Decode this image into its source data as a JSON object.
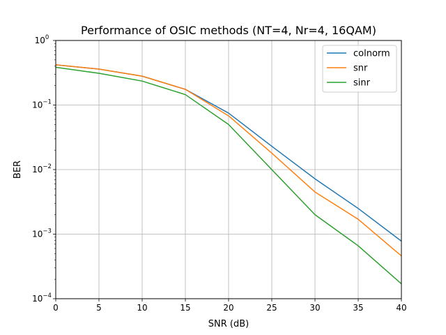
{
  "chart_data": {
    "type": "line",
    "title": "Performance of OSIC methods (NT=4, Nr=4, 16QAM)",
    "xlabel": "SNR (dB)",
    "ylabel": "BER",
    "x": [
      0,
      5,
      10,
      15,
      20,
      25,
      30,
      35,
      40
    ],
    "xlim": [
      0,
      40
    ],
    "ylim": [
      0.0001,
      1
    ],
    "yscale": "log",
    "grid": true,
    "legend_position": "top-right",
    "x_ticks": [
      "0",
      "5",
      "10",
      "15",
      "20",
      "25",
      "30",
      "35",
      "40"
    ],
    "y_ticks": [
      {
        "base": "10",
        "exp": "−4",
        "value": 0.0001
      },
      {
        "base": "10",
        "exp": "−3",
        "value": 0.001
      },
      {
        "base": "10",
        "exp": "−2",
        "value": 0.01
      },
      {
        "base": "10",
        "exp": "−1",
        "value": 0.1
      },
      {
        "base": "10",
        "exp": "0",
        "value": 1
      }
    ],
    "series": [
      {
        "name": "colnorm",
        "color": "#1f77b4",
        "values": [
          0.42,
          0.36,
          0.28,
          0.175,
          0.075,
          0.023,
          0.0072,
          0.0025,
          0.00078
        ]
      },
      {
        "name": "snr",
        "color": "#ff7f0e",
        "values": [
          0.42,
          0.36,
          0.28,
          0.175,
          0.068,
          0.018,
          0.0045,
          0.0017,
          0.00046
        ]
      },
      {
        "name": "sinr",
        "color": "#2ca02c",
        "values": [
          0.385,
          0.31,
          0.235,
          0.145,
          0.05,
          0.01,
          0.002,
          0.00066,
          0.00017
        ]
      }
    ]
  }
}
